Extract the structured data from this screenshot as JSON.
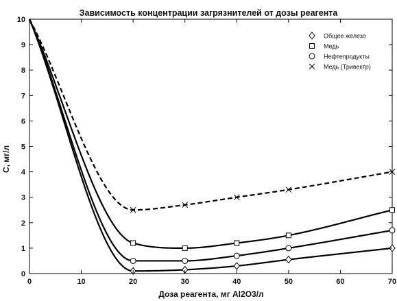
{
  "chart_data": {
    "type": "line",
    "title": "Зависимость концентрации загрязнителей от дозы реагента",
    "xlabel": "Доза реагента, мг Al2O3/л",
    "ylabel": "С, мг/л",
    "xlim": [
      0,
      70
    ],
    "ylim": [
      0,
      10
    ],
    "xticks": [
      "0",
      "10",
      "20",
      "30",
      "40",
      "50",
      "60",
      "70"
    ],
    "yticks": [
      "0",
      "1",
      "2",
      "3",
      "4",
      "5",
      "6",
      "7",
      "8",
      "9",
      "10"
    ],
    "grid": false,
    "legend_position": "top-right",
    "series": [
      {
        "name": "Общее железо",
        "marker": "diamond",
        "line_style": "solid",
        "x": [
          0,
          20,
          30,
          40,
          50,
          70
        ],
        "y": [
          10,
          0.1,
          0.15,
          0.3,
          0.55,
          1.0
        ]
      },
      {
        "name": "Медь",
        "marker": "square",
        "line_style": "solid",
        "x": [
          0,
          20,
          30,
          40,
          50,
          70
        ],
        "y": [
          10,
          1.2,
          1.0,
          1.2,
          1.5,
          2.5
        ]
      },
      {
        "name": "Нефтепродукты",
        "marker": "circle",
        "line_style": "solid",
        "x": [
          0,
          20,
          30,
          40,
          50,
          70
        ],
        "y": [
          10,
          0.5,
          0.5,
          0.7,
          1.0,
          1.7
        ]
      },
      {
        "name": "Медь (Тривектр)",
        "marker": "x",
        "line_style": "dashed",
        "x": [
          0,
          20,
          30,
          40,
          50,
          70
        ],
        "y": [
          10,
          2.5,
          2.7,
          3.0,
          3.3,
          4.0
        ]
      }
    ]
  }
}
